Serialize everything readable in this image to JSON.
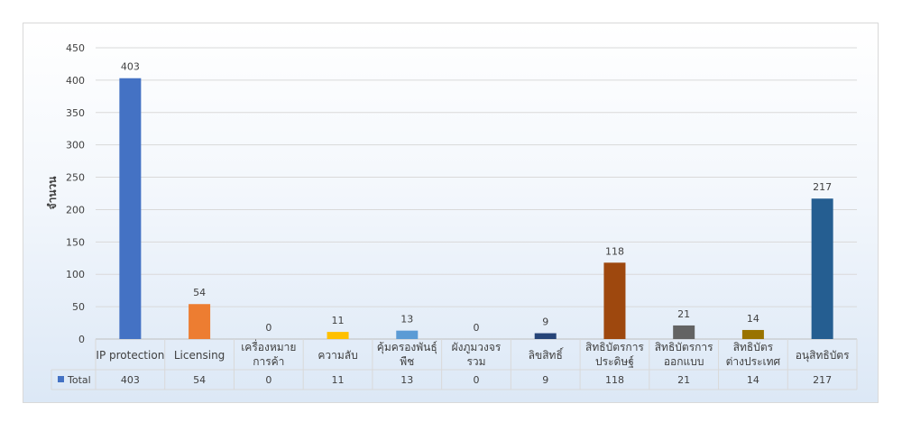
{
  "chart_data": {
    "type": "bar",
    "title": "",
    "xlabel": "",
    "ylabel": "จำนวน",
    "ylim": [
      0,
      450
    ],
    "yticks": [
      0,
      50,
      100,
      150,
      200,
      250,
      300,
      350,
      400,
      450
    ],
    "grid": true,
    "legend": "data-table",
    "categories": [
      [
        "IP protection"
      ],
      [
        "Licensing"
      ],
      [
        "เครื่องหมาย",
        "การค้า"
      ],
      [
        "ความลับ"
      ],
      [
        "คุ้มครองพันธุ์",
        "พืช"
      ],
      [
        "ผังภูมวงจร",
        "รวม"
      ],
      [
        "ลิขสิทธิ์"
      ],
      [
        "สิทธิบัตรการ",
        "ประดิษฐ์"
      ],
      [
        "สิทธิบัตรการ",
        "ออกแบบ"
      ],
      [
        "สิทธิบัตร",
        "ต่างประเทศ"
      ],
      [
        "อนุสิทธิบัตร"
      ]
    ],
    "series": [
      {
        "name": "Total",
        "values": [
          403,
          54,
          0,
          11,
          13,
          0,
          9,
          118,
          21,
          14,
          217
        ],
        "colors": [
          "#4472c4",
          "#ed7d31",
          "#a5a5a5",
          "#ffc000",
          "#5b9bd5",
          "#70ad47",
          "#264478",
          "#9e480e",
          "#636363",
          "#997300",
          "#255e91"
        ]
      }
    ],
    "legend_marker_color": "#4472c4"
  }
}
